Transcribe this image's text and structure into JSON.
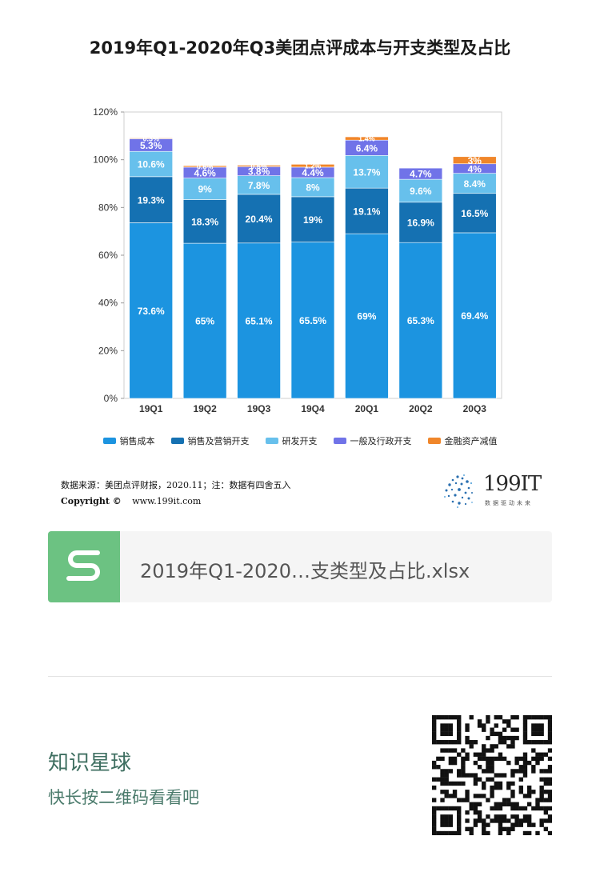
{
  "chart_data": {
    "type": "bar",
    "stacked": true,
    "title": "2019年Q1-2020年Q3美团点评成本与开支类型及占比",
    "categories": [
      "19Q1",
      "19Q2",
      "19Q3",
      "19Q4",
      "20Q1",
      "20Q2",
      "20Q3"
    ],
    "ylim": [
      0,
      120
    ],
    "yticks": [
      "0%",
      "20%",
      "40%",
      "60%",
      "80%",
      "100%",
      "120%"
    ],
    "grid": false,
    "legend_position": "bottom",
    "series": [
      {
        "name": "销售成本",
        "color": "#1c94e0",
        "values": [
          73.6,
          65,
          65.1,
          65.5,
          69,
          65.3,
          69.4
        ],
        "labels": [
          "73.6%",
          "65%",
          "65.1%",
          "65.5%",
          "69%",
          "65.3%",
          "69.4%"
        ]
      },
      {
        "name": "销售及营销开支",
        "color": "#1571b2",
        "values": [
          19.3,
          18.3,
          20.4,
          19,
          19.1,
          16.9,
          16.5
        ],
        "labels": [
          "19.3%",
          "18.3%",
          "20.4%",
          "19%",
          "19.1%",
          "16.9%",
          "16.5%"
        ]
      },
      {
        "name": "研发开支",
        "color": "#67c0ec",
        "values": [
          10.6,
          9,
          7.8,
          8,
          13.7,
          9.6,
          8.4
        ],
        "labels": [
          "10.6%",
          "9%",
          "7.8%",
          "8%",
          "13.7%",
          "9.6%",
          "8.4%"
        ]
      },
      {
        "name": "一般及行政开支",
        "color": "#7073e8",
        "values": [
          5.3,
          4.6,
          3.8,
          4.4,
          6.4,
          4.7,
          4
        ],
        "labels": [
          "5.3%",
          "4.6%",
          "3.8%",
          "4.4%",
          "6.4%",
          "4.7%",
          "4%"
        ]
      },
      {
        "name": "金融资产减值",
        "color": "#f0862a",
        "values": [
          0.3,
          0.6,
          0.6,
          1.2,
          1.4,
          0,
          3
        ],
        "labels": [
          "0.3%",
          "0.6%",
          "0.6%",
          "1.2%",
          "1.4%",
          "",
          "3%"
        ]
      }
    ]
  },
  "source": {
    "line": "数据来源：美团点评财报，2020.11；注：数据有四舍五入",
    "copyright_label": "Copyright ©",
    "url": "www.199it.com"
  },
  "logo": {
    "text": "199IT",
    "tagline": "数据驱动未来",
    "color": "#2a6fb0"
  },
  "file_card": {
    "name": "2019年Q1-2020…支类型及占比.xlsx",
    "icon": "spreadsheet-s-icon",
    "color": "#6cc282"
  },
  "footer": {
    "title": "知识星球",
    "subtitle": "快长按二维码看看吧"
  }
}
